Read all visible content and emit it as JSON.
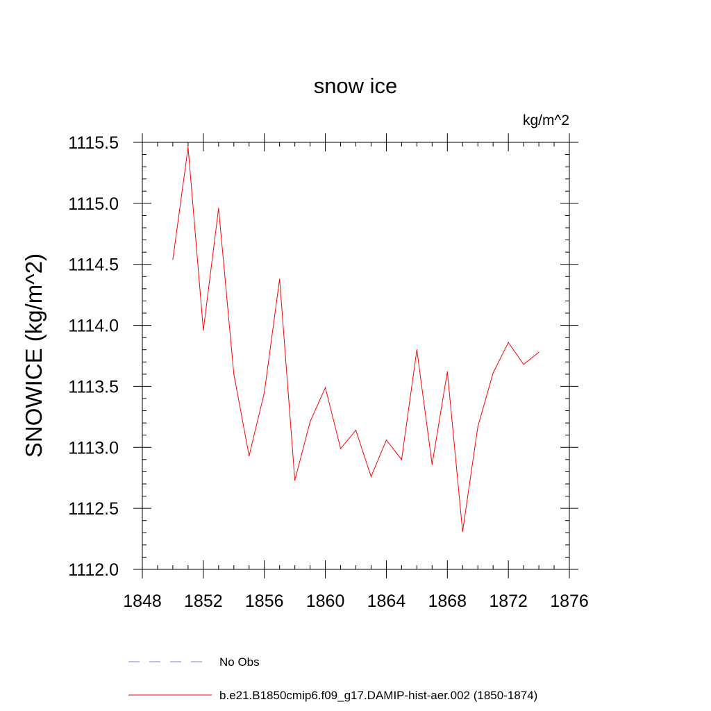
{
  "chart_data": {
    "type": "line",
    "title": "snow ice",
    "units": "kg/m^2",
    "xlabel": "",
    "ylabel": "SNOWICE  (kg/m^2)",
    "xlim": [
      1848,
      1876
    ],
    "ylim": [
      1112.0,
      1115.5
    ],
    "x_ticks": [
      1848,
      1852,
      1856,
      1860,
      1864,
      1868,
      1872,
      1876
    ],
    "x_tick_labels": [
      "1848",
      "1852",
      "1856",
      "1860",
      "1864",
      "1868",
      "1872",
      "1876"
    ],
    "y_ticks": [
      1112.0,
      1112.5,
      1113.0,
      1113.5,
      1114.0,
      1114.5,
      1115.0,
      1115.5
    ],
    "y_tick_labels": [
      "1112.0",
      "1112.5",
      "1113.0",
      "1113.5",
      "1114.0",
      "1114.5",
      "1115.0",
      "1115.5"
    ],
    "grid": false,
    "legend_position": "bottom",
    "series": [
      {
        "name": "b.e21.B1850cmip6.f09_g17.DAMIP-hist-aer.002 (1850-1874)",
        "color": "#ff0000",
        "dash": "solid",
        "x": [
          1850,
          1851,
          1852,
          1853,
          1854,
          1855,
          1856,
          1857,
          1858,
          1859,
          1860,
          1861,
          1862,
          1863,
          1864,
          1865,
          1866,
          1867,
          1868,
          1869,
          1870,
          1871,
          1872,
          1873,
          1874
        ],
        "values": [
          1114.54,
          1115.46,
          1113.96,
          1114.96,
          1113.6,
          1112.93,
          1113.45,
          1114.38,
          1112.73,
          1113.21,
          1113.49,
          1112.99,
          1113.14,
          1112.76,
          1113.06,
          1112.9,
          1113.8,
          1112.86,
          1113.62,
          1112.31,
          1113.17,
          1113.61,
          1113.86,
          1113.68,
          1113.78
        ]
      }
    ],
    "legend": [
      {
        "label": "No Obs",
        "color": "#7b7bd6",
        "dash": "dashed"
      },
      {
        "label": "b.e21.B1850cmip6.f09_g17.DAMIP-hist-aer.002 (1850-1874)",
        "color": "#ff0000",
        "dash": "solid"
      }
    ]
  }
}
